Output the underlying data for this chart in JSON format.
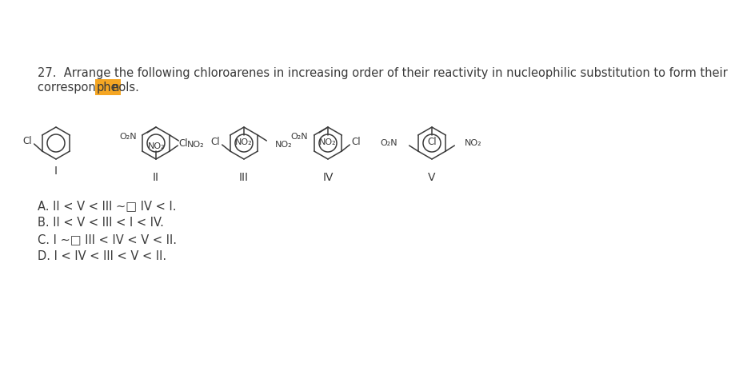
{
  "background_color": "#ffffff",
  "highlight_color": "#f5a623",
  "answer_options": [
    "A. II < V < III ∼□ IV < I.",
    "B. II < V < III < I < IV.",
    "C. I ∼□ III < IV < V < II.",
    "D. I < IV < III < V < II."
  ],
  "q_line1": "27.  Arrange the following chloroarenes in increasing order of their reactivity in nucleophilic substitution to form their",
  "q_line2_pre": "corresponding ",
  "q_line2_highlight": "phe",
  "q_line2_post": "nols.",
  "font_size_q": 10.5,
  "font_size_ans": 10.5,
  "font_size_mol": 8.5,
  "font_size_label": 10,
  "line_color": "#3a3a3a",
  "text_color": "#3a3a3a"
}
